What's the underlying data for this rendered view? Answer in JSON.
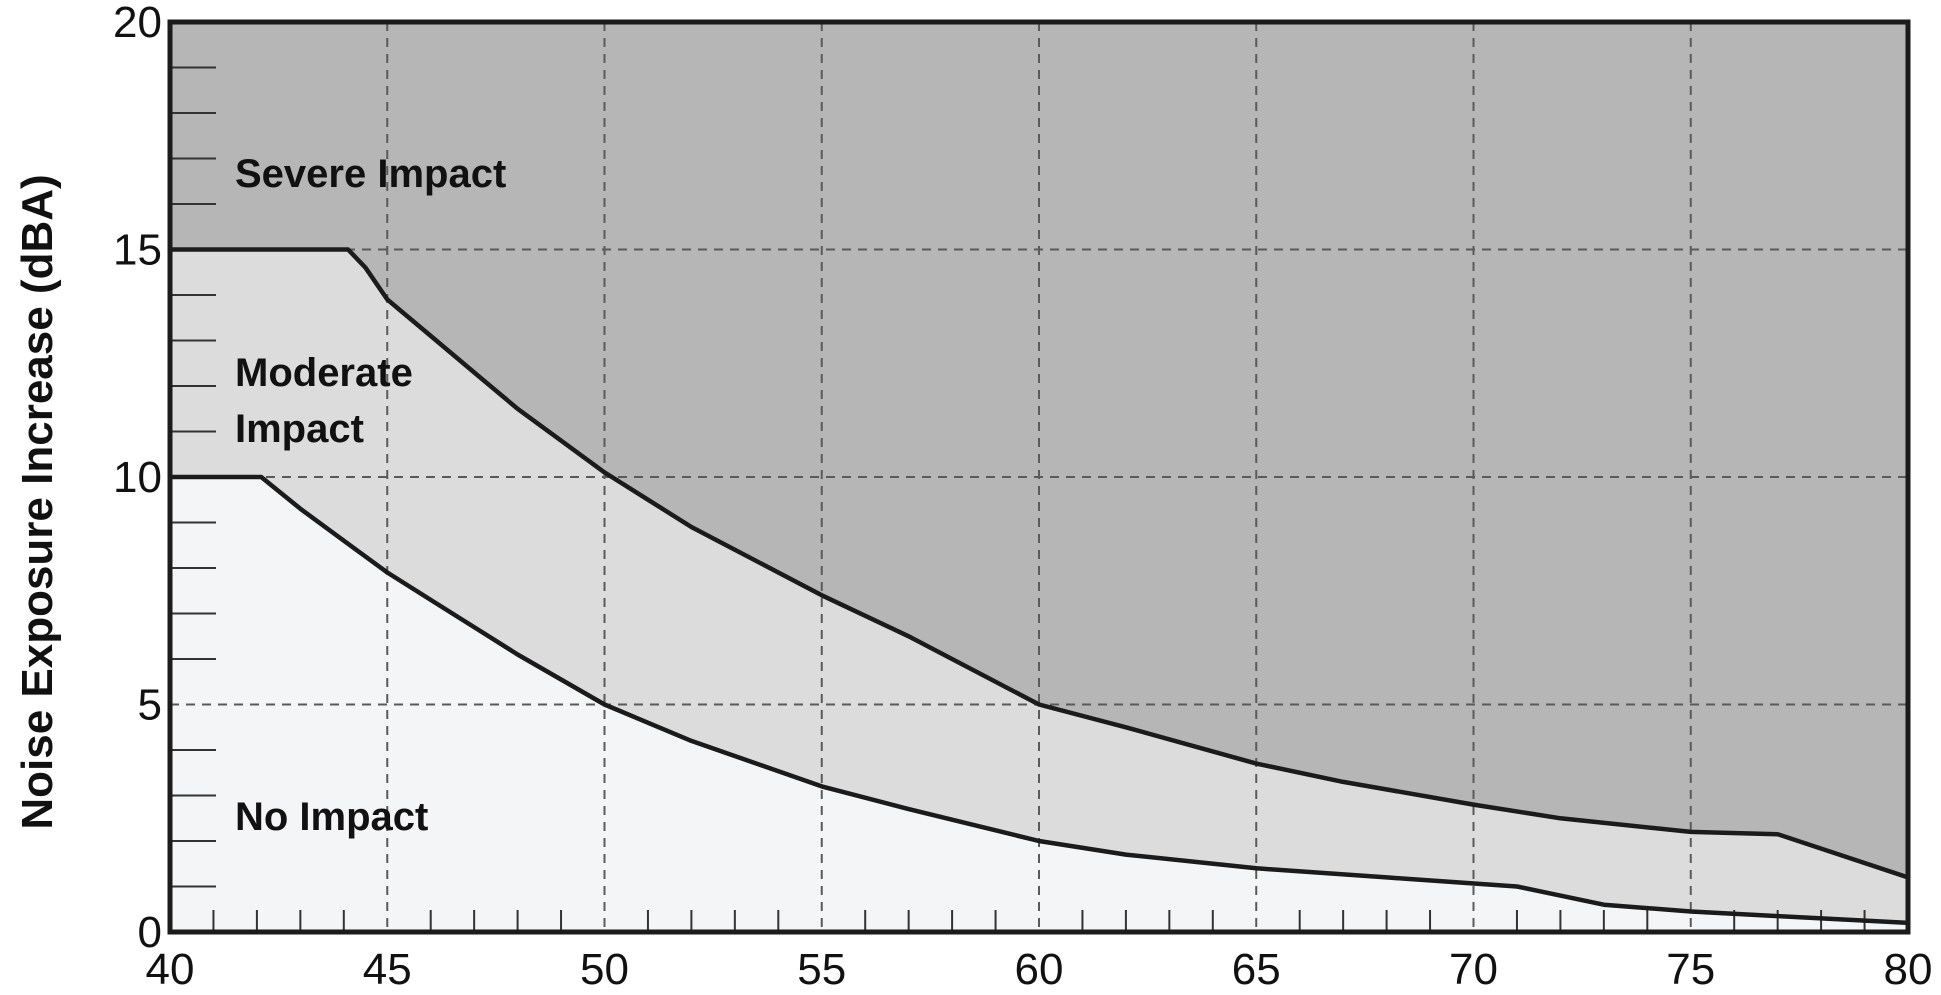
{
  "chart_data": {
    "type": "area",
    "title": "",
    "xlabel": "",
    "ylabel": "Noise Exposure Increase (dBA)",
    "xlim": [
      40,
      80
    ],
    "ylim": [
      0,
      20
    ],
    "x_ticks": [
      "40",
      "45",
      "50",
      "55",
      "60",
      "65",
      "70",
      "75",
      "80"
    ],
    "y_ticks": [
      "0",
      "5",
      "10",
      "15",
      "20"
    ],
    "grid": "dashed at major ticks",
    "regions": [
      {
        "label": "Severe Impact",
        "color": "#b6b6b6"
      },
      {
        "label": "Moderate Impact",
        "color": "#dcdcdd"
      },
      {
        "label": "No Impact",
        "color": "#f4f5f7"
      }
    ],
    "series": [
      {
        "name": "Severe Impact threshold",
        "points": [
          [
            40,
            15
          ],
          [
            42,
            15
          ],
          [
            44.1,
            15
          ],
          [
            44.5,
            14.6
          ],
          [
            45,
            13.9
          ],
          [
            46,
            13.1
          ],
          [
            47,
            12.3
          ],
          [
            48,
            11.5
          ],
          [
            49,
            10.8
          ],
          [
            50,
            10.1
          ],
          [
            52,
            8.9
          ],
          [
            54,
            7.9
          ],
          [
            55,
            7.4
          ],
          [
            57,
            6.5
          ],
          [
            60,
            5.0
          ],
          [
            62,
            4.5
          ],
          [
            65,
            3.7
          ],
          [
            67,
            3.3
          ],
          [
            70,
            2.8
          ],
          [
            72,
            2.5
          ],
          [
            75,
            2.2
          ],
          [
            77,
            2.15
          ],
          [
            80,
            1.2
          ]
        ]
      },
      {
        "name": "Moderate Impact threshold",
        "points": [
          [
            40,
            10
          ],
          [
            42.1,
            10
          ],
          [
            43,
            9.3
          ],
          [
            44,
            8.6
          ],
          [
            45,
            7.9
          ],
          [
            46,
            7.3
          ],
          [
            47,
            6.7
          ],
          [
            48,
            6.1
          ],
          [
            50,
            5.0
          ],
          [
            52,
            4.2
          ],
          [
            55,
            3.2
          ],
          [
            57,
            2.7
          ],
          [
            60,
            2.0
          ],
          [
            62,
            1.7
          ],
          [
            65,
            1.4
          ],
          [
            68,
            1.2
          ],
          [
            71,
            1.0
          ],
          [
            73,
            0.6
          ],
          [
            75,
            0.45
          ],
          [
            77,
            0.35
          ],
          [
            80,
            0.2
          ]
        ]
      }
    ]
  }
}
